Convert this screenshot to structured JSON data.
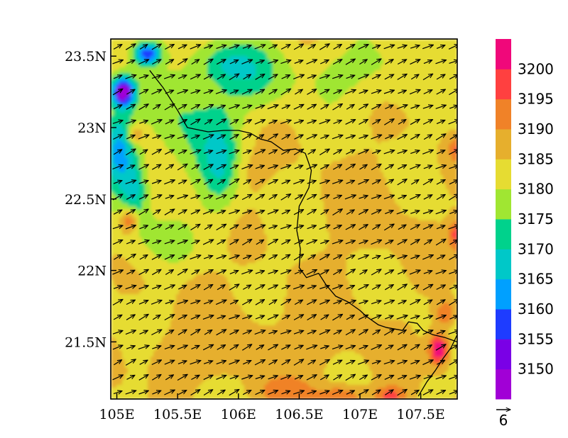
{
  "map": {
    "lon_range": [
      104.95,
      107.8
    ],
    "lat_range": [
      21.1,
      23.62
    ],
    "lon_ticks": [
      {
        "value": 105.0,
        "label": "105E"
      },
      {
        "value": 105.5,
        "label": "105.5E"
      },
      {
        "value": 106.0,
        "label": "106E"
      },
      {
        "value": 106.5,
        "label": "106.5E"
      },
      {
        "value": 107.0,
        "label": "107E"
      },
      {
        "value": 107.5,
        "label": "107.5E"
      }
    ],
    "lat_ticks": [
      {
        "value": 21.5,
        "label": "21.5N"
      },
      {
        "value": 22.0,
        "label": "22N"
      },
      {
        "value": 22.5,
        "label": "22.5N"
      },
      {
        "value": 23.0,
        "label": "23N"
      },
      {
        "value": 23.5,
        "label": "23.5N"
      }
    ],
    "field_base_value": 3184,
    "wind_direction_deg_from_east": 25,
    "wind_speed_typical": 6,
    "border": [
      [
        105.27,
        23.4
      ],
      [
        105.38,
        23.28
      ],
      [
        105.5,
        23.12
      ],
      [
        105.58,
        23.0
      ],
      [
        105.75,
        22.97
      ],
      [
        105.88,
        22.98
      ],
      [
        106.0,
        22.98
      ],
      [
        106.1,
        22.96
      ],
      [
        106.18,
        22.92
      ],
      [
        106.27,
        22.9
      ],
      [
        106.37,
        22.84
      ],
      [
        106.47,
        22.85
      ],
      [
        106.55,
        22.82
      ],
      [
        106.6,
        22.7
      ],
      [
        106.58,
        22.58
      ],
      [
        106.5,
        22.45
      ],
      [
        106.48,
        22.28
      ],
      [
        106.51,
        22.15
      ],
      [
        106.5,
        22.02
      ],
      [
        106.56,
        21.95
      ],
      [
        106.66,
        21.98
      ],
      [
        106.72,
        21.9
      ],
      [
        106.8,
        21.82
      ],
      [
        106.9,
        21.78
      ],
      [
        107.0,
        21.72
      ],
      [
        107.05,
        21.68
      ],
      [
        107.15,
        21.62
      ],
      [
        107.22,
        21.6
      ],
      [
        107.35,
        21.58
      ],
      [
        107.4,
        21.64
      ],
      [
        107.47,
        21.63
      ],
      [
        107.52,
        21.58
      ],
      [
        107.6,
        21.55
      ],
      [
        107.7,
        21.53
      ],
      [
        107.8,
        21.5
      ]
    ],
    "coast": [
      [
        107.48,
        21.12
      ],
      [
        107.55,
        21.22
      ],
      [
        107.62,
        21.3
      ],
      [
        107.68,
        21.38
      ],
      [
        107.75,
        21.46
      ],
      [
        107.8,
        21.55
      ]
    ]
  },
  "colorbar": {
    "colors": [
      "#a100d6",
      "#7a00e6",
      "#1e3cff",
      "#00a0ff",
      "#00c8c8",
      "#00d28c",
      "#a0e632",
      "#e6dc32",
      "#e6af2d",
      "#f08228",
      "#ff4040",
      "#f0087a"
    ],
    "labels": [
      "3150",
      "3155",
      "3160",
      "3165",
      "3170",
      "3175",
      "3180",
      "3185",
      "3190",
      "3195",
      "3200"
    ]
  },
  "reference_vector": {
    "label": "6"
  }
}
